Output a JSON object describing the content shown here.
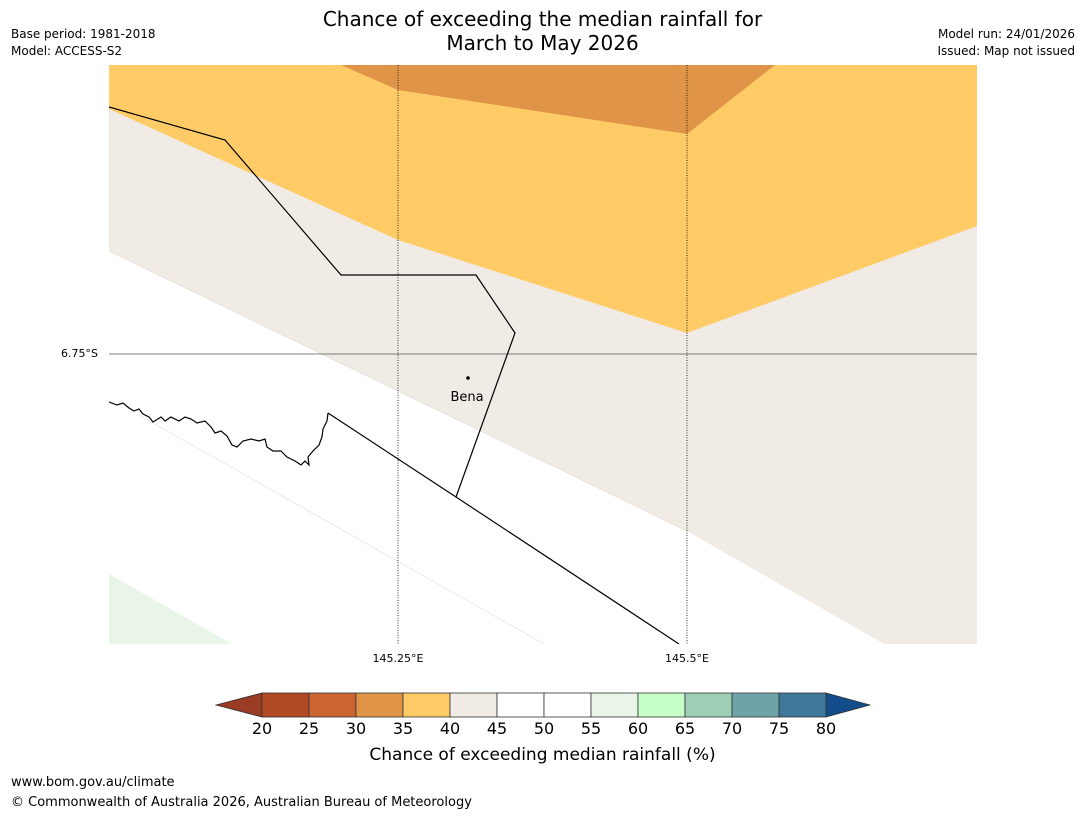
{
  "title": {
    "line1": "Chance of exceeding the median rainfall for",
    "line2": "March to May 2026"
  },
  "meta_left": {
    "base_period": "Base period: 1981-2018",
    "model": "Model: ACCESS-S2"
  },
  "meta_right": {
    "model_run": "Model run: 24/01/2026",
    "issued": "Issued: Map not issued"
  },
  "map": {
    "lat_label": "6.75°S",
    "lon_labels": [
      "145.25°E",
      "145.5°E"
    ],
    "place": {
      "name": "Bena"
    }
  },
  "legend": {
    "title": "Chance of exceeding median rainfall (%)",
    "ticks": [
      "20",
      "25",
      "30",
      "35",
      "40",
      "45",
      "50",
      "55",
      "60",
      "65",
      "70",
      "75",
      "80"
    ],
    "colors": {
      "below_20": "#9a3b25",
      "c20_25": "#b14a25",
      "c25_30": "#cc6432",
      "c30_35": "#e09447",
      "c35_40": "#fecb66",
      "c40_45": "#f0ebe5",
      "c45_50": "#ffffff",
      "c50_55": "#ffffff",
      "c55_60": "#e9f5e8",
      "c60_65": "#c6ffc8",
      "c65_70": "#9ecfb6",
      "c70_75": "#6ea4a7",
      "c75_80": "#40789a",
      "above_80": "#124c8a"
    }
  },
  "footer": {
    "url": "www.bom.gov.au/climate",
    "copyright": "© Commonwealth of Australia 2026, Australian Bureau of Meteorology"
  }
}
